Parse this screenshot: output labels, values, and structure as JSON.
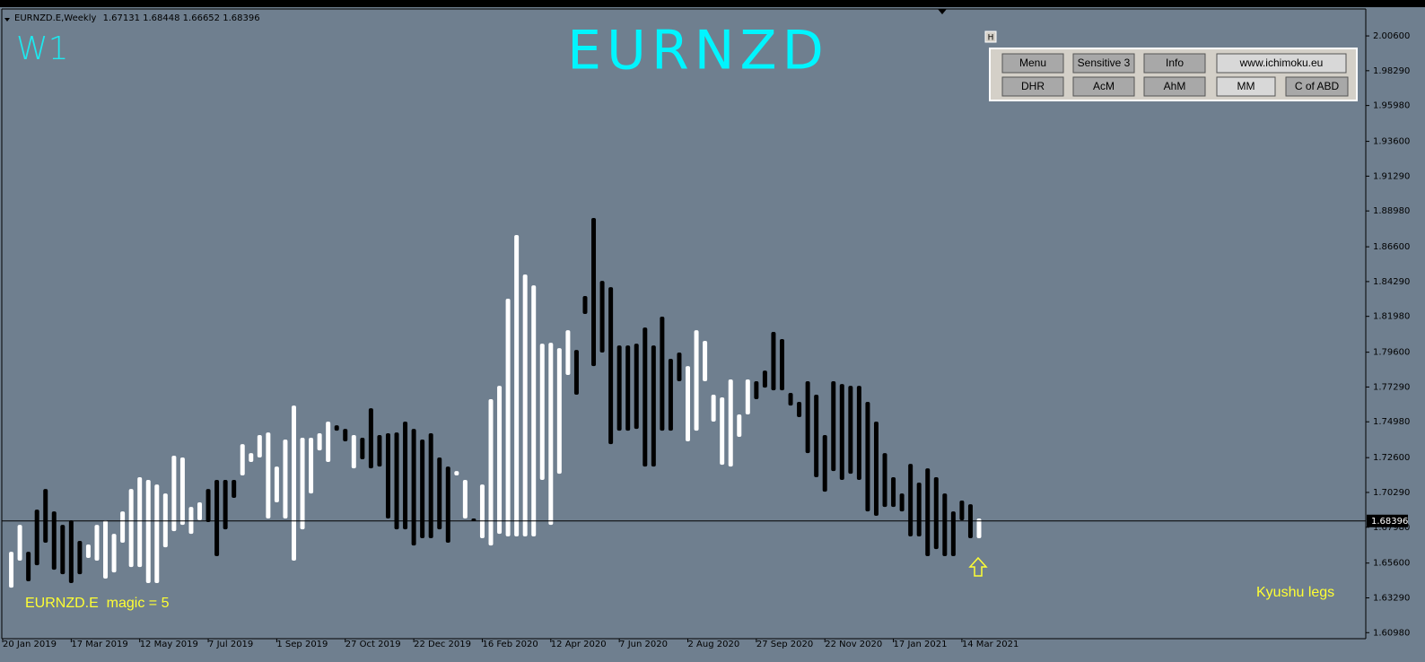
{
  "header": {
    "symbol": "EURNZD.E,Weekly",
    "ohlc": [
      1.67131,
      1.68448,
      1.66652,
      1.68396
    ]
  },
  "timeframe": "W1",
  "panel": {
    "buttons": [
      [
        "Menu",
        "Sensitive 3",
        "Info",
        "www.ichimoku.eu"
      ],
      [
        "DHR",
        "AcM",
        "AhM",
        "MM",
        "C of ABD"
      ]
    ]
  },
  "labels": {
    "magic": "EURNZD.E  magic = 5",
    "method": "Kyushu legs"
  },
  "chart_data": {
    "type": "bar",
    "title": "EURNZD",
    "categories": [
      "20 Jan 2019",
      null,
      null,
      null,
      null,
      null,
      null,
      null,
      "17 Mar 2019",
      null,
      null,
      null,
      null,
      null,
      null,
      null,
      "12 May 2019",
      null,
      null,
      null,
      null,
      null,
      null,
      null,
      "7 Jul 2019",
      null,
      null,
      null,
      null,
      null,
      null,
      null,
      "1 Sep 2019",
      null,
      null,
      null,
      null,
      null,
      null,
      null,
      "27 Oct 2019",
      null,
      null,
      null,
      null,
      null,
      null,
      null,
      "22 Dec 2019",
      null,
      null,
      null,
      null,
      null,
      null,
      null,
      "16 Feb 2020",
      null,
      null,
      null,
      null,
      null,
      null,
      null,
      "12 Apr 2020",
      null,
      null,
      null,
      null,
      null,
      null,
      null,
      "7 Jun 2020",
      null,
      null,
      null,
      null,
      null,
      null,
      null,
      "2 Aug 2020",
      null,
      null,
      null,
      null,
      null,
      null,
      null,
      "27 Sep 2020",
      null,
      null,
      null,
      null,
      null,
      null,
      null,
      "22 Nov 2020",
      null,
      null,
      null,
      null,
      null,
      null,
      null,
      "17 Jan 2021",
      null,
      null,
      null,
      null,
      null,
      null,
      null,
      "14 Mar 2021",
      null,
      null
    ],
    "high": [
      null,
      1.6635,
      1.6814,
      1.6635,
      1.6915,
      1.7052,
      1.6903,
      1.6814,
      1.6844,
      1.6707,
      1.6683,
      1.6814,
      1.6844,
      1.6754,
      1.6903,
      1.7052,
      1.713,
      1.7112,
      1.7082,
      1.7022,
      1.7273,
      1.7261,
      1.6933,
      1.6963,
      1.7052,
      1.7112,
      1.7112,
      1.7112,
      1.735,
      1.729,
      1.741,
      1.7427,
      1.7201,
      1.738,
      1.7606,
      1.7392,
      1.7392,
      1.7422,
      1.7499,
      1.7475,
      1.7451,
      1.741,
      1.7392,
      1.7588,
      1.741,
      1.7422,
      1.7427,
      1.7499,
      1.7451,
      1.738,
      1.7422,
      1.7261,
      1.7201,
      1.7171,
      1.7112,
      1.6856,
      1.7082,
      1.7648,
      1.7737,
      1.8315,
      1.8738,
      1.8476,
      1.8404,
      1.8017,
      1.8023,
      1.7987,
      1.8106,
      1.7975,
      1.8333,
      1.8851,
      1.8434,
      1.8392,
      1.8005,
      1.8005,
      1.8017,
      1.8124,
      1.8005,
      1.8196,
      1.7916,
      1.7958,
      1.7868,
      1.8106,
      1.8035,
      1.7678,
      1.766,
      1.7779,
      1.7547,
      1.7779,
      1.7767,
      1.7838,
      1.8095,
      1.8047,
      1.769,
      1.763,
      1.7767,
      1.7678,
      1.741,
      1.7767,
      1.7749,
      1.7737,
      1.7737,
      1.763,
      1.7499,
      1.729,
      1.713,
      1.7022,
      1.7219,
      1.7094,
      1.7189,
      1.713,
      1.7022,
      1.6903,
      1.6975,
      1.6951,
      1.6856
    ],
    "low": [
      null,
      1.6397,
      1.6576,
      1.6439,
      1.6546,
      1.6695,
      1.6516,
      1.6486,
      1.6427,
      1.6486,
      1.6594,
      1.6576,
      1.6457,
      1.6498,
      1.6695,
      1.6534,
      1.6534,
      1.6427,
      1.6427,
      1.6665,
      1.6772,
      1.6814,
      1.6754,
      1.6844,
      1.6832,
      1.6606,
      1.6784,
      1.6993,
      1.7142,
      1.7231,
      1.7261,
      1.6856,
      1.6963,
      1.6856,
      1.6576,
      1.6784,
      1.7022,
      1.7308,
      1.7231,
      1.7439,
      1.7368,
      1.7189,
      1.7249,
      1.7189,
      1.7201,
      1.6856,
      1.6784,
      1.6784,
      1.6677,
      1.6725,
      1.6725,
      1.6784,
      1.6695,
      1.7142,
      1.6856,
      1.6844,
      1.6725,
      1.6677,
      1.6754,
      1.6737,
      1.6737,
      1.6737,
      1.6737,
      1.7112,
      1.6814,
      1.7153,
      1.7809,
      1.7678,
      1.8214,
      1.7868,
      1.7958,
      1.735,
      1.7439,
      1.7439,
      1.7451,
      1.7201,
      1.7201,
      1.7439,
      1.7439,
      1.7767,
      1.7368,
      1.7439,
      1.7767,
      1.7499,
      1.7213,
      1.7201,
      1.7398,
      1.7547,
      1.7648,
      1.7725,
      1.7707,
      1.7707,
      1.7606,
      1.7529,
      1.729,
      1.713,
      1.7034,
      1.7171,
      1.7112,
      1.7153,
      1.7112,
      1.6903,
      1.6874,
      1.6933,
      1.6933,
      1.6903,
      1.6737,
      1.6737,
      1.6606,
      1.6653,
      1.6606,
      1.6606,
      1.6844,
      1.6725,
      1.6725
    ],
    "bar_colors": [
      null,
      "#ffffff",
      "#ffffff",
      "#000000",
      "#000000",
      "#000000",
      "#000000",
      "#000000",
      "#000000",
      "#000000",
      "#ffffff",
      "#ffffff",
      "#ffffff",
      "#ffffff",
      "#ffffff",
      "#ffffff",
      "#ffffff",
      "#ffffff",
      "#ffffff",
      "#ffffff",
      "#ffffff",
      "#ffffff",
      "#ffffff",
      "#ffffff",
      "#000000",
      "#000000",
      "#000000",
      "#000000",
      "#ffffff",
      "#ffffff",
      "#ffffff",
      "#ffffff",
      "#ffffff",
      "#ffffff",
      "#ffffff",
      "#ffffff",
      "#ffffff",
      "#ffffff",
      "#ffffff",
      "#000000",
      "#000000",
      "#ffffff",
      "#000000",
      "#000000",
      "#000000",
      "#000000",
      "#000000",
      "#000000",
      "#000000",
      "#000000",
      "#000000",
      "#000000",
      "#000000",
      "#ffffff",
      "#ffffff",
      "#000000",
      "#ffffff",
      "#ffffff",
      "#ffffff",
      "#ffffff",
      "#ffffff",
      "#ffffff",
      "#ffffff",
      "#ffffff",
      "#ffffff",
      "#ffffff",
      "#ffffff",
      "#000000",
      "#000000",
      "#000000",
      "#000000",
      "#000000",
      "#000000",
      "#000000",
      "#000000",
      "#000000",
      "#000000",
      "#000000",
      "#000000",
      "#000000",
      "#ffffff",
      "#ffffff",
      "#ffffff",
      "#ffffff",
      "#ffffff",
      "#ffffff",
      "#ffffff",
      "#ffffff",
      "#000000",
      "#000000",
      "#000000",
      "#000000",
      "#000000",
      "#000000",
      "#000000",
      "#000000",
      "#000000",
      "#000000",
      "#000000",
      "#000000",
      "#000000",
      "#000000",
      "#000000",
      "#000000",
      "#000000",
      "#000000",
      "#000000",
      "#000000",
      "#000000",
      "#000000",
      "#000000",
      "#000000",
      "#000000",
      "#000000",
      "#ffffff"
    ],
    "last": 1.68396,
    "ylim": [
      1.6058,
      2.0239
    ],
    "yticks": [
      {
        "value": 2.006,
        "label": "2.00600"
      },
      {
        "value": 1.9829,
        "label": "1.98290"
      },
      {
        "value": 1.9598,
        "label": "1.95980"
      },
      {
        "value": 1.936,
        "label": "1.93600"
      },
      {
        "value": 1.9129,
        "label": "1.91290"
      },
      {
        "value": 1.8898,
        "label": "1.88980"
      },
      {
        "value": 1.866,
        "label": "1.86600"
      },
      {
        "value": 1.8429,
        "label": "1.84290"
      },
      {
        "value": 1.8198,
        "label": "1.81980"
      },
      {
        "value": 1.796,
        "label": "1.79600"
      },
      {
        "value": 1.7729,
        "label": "1.77290"
      },
      {
        "value": 1.7498,
        "label": "1.74980"
      },
      {
        "value": 1.726,
        "label": "1.72600"
      },
      {
        "value": 1.7029,
        "label": "1.70290"
      },
      {
        "value": 1.6798,
        "label": "1.67980"
      },
      {
        "value": 1.656,
        "label": "1.65600"
      },
      {
        "value": 1.6329,
        "label": "1.63290"
      },
      {
        "value": 1.6098,
        "label": "1.60980"
      }
    ],
    "background": "#6f7f8f",
    "price_line_color": "#000000"
  }
}
